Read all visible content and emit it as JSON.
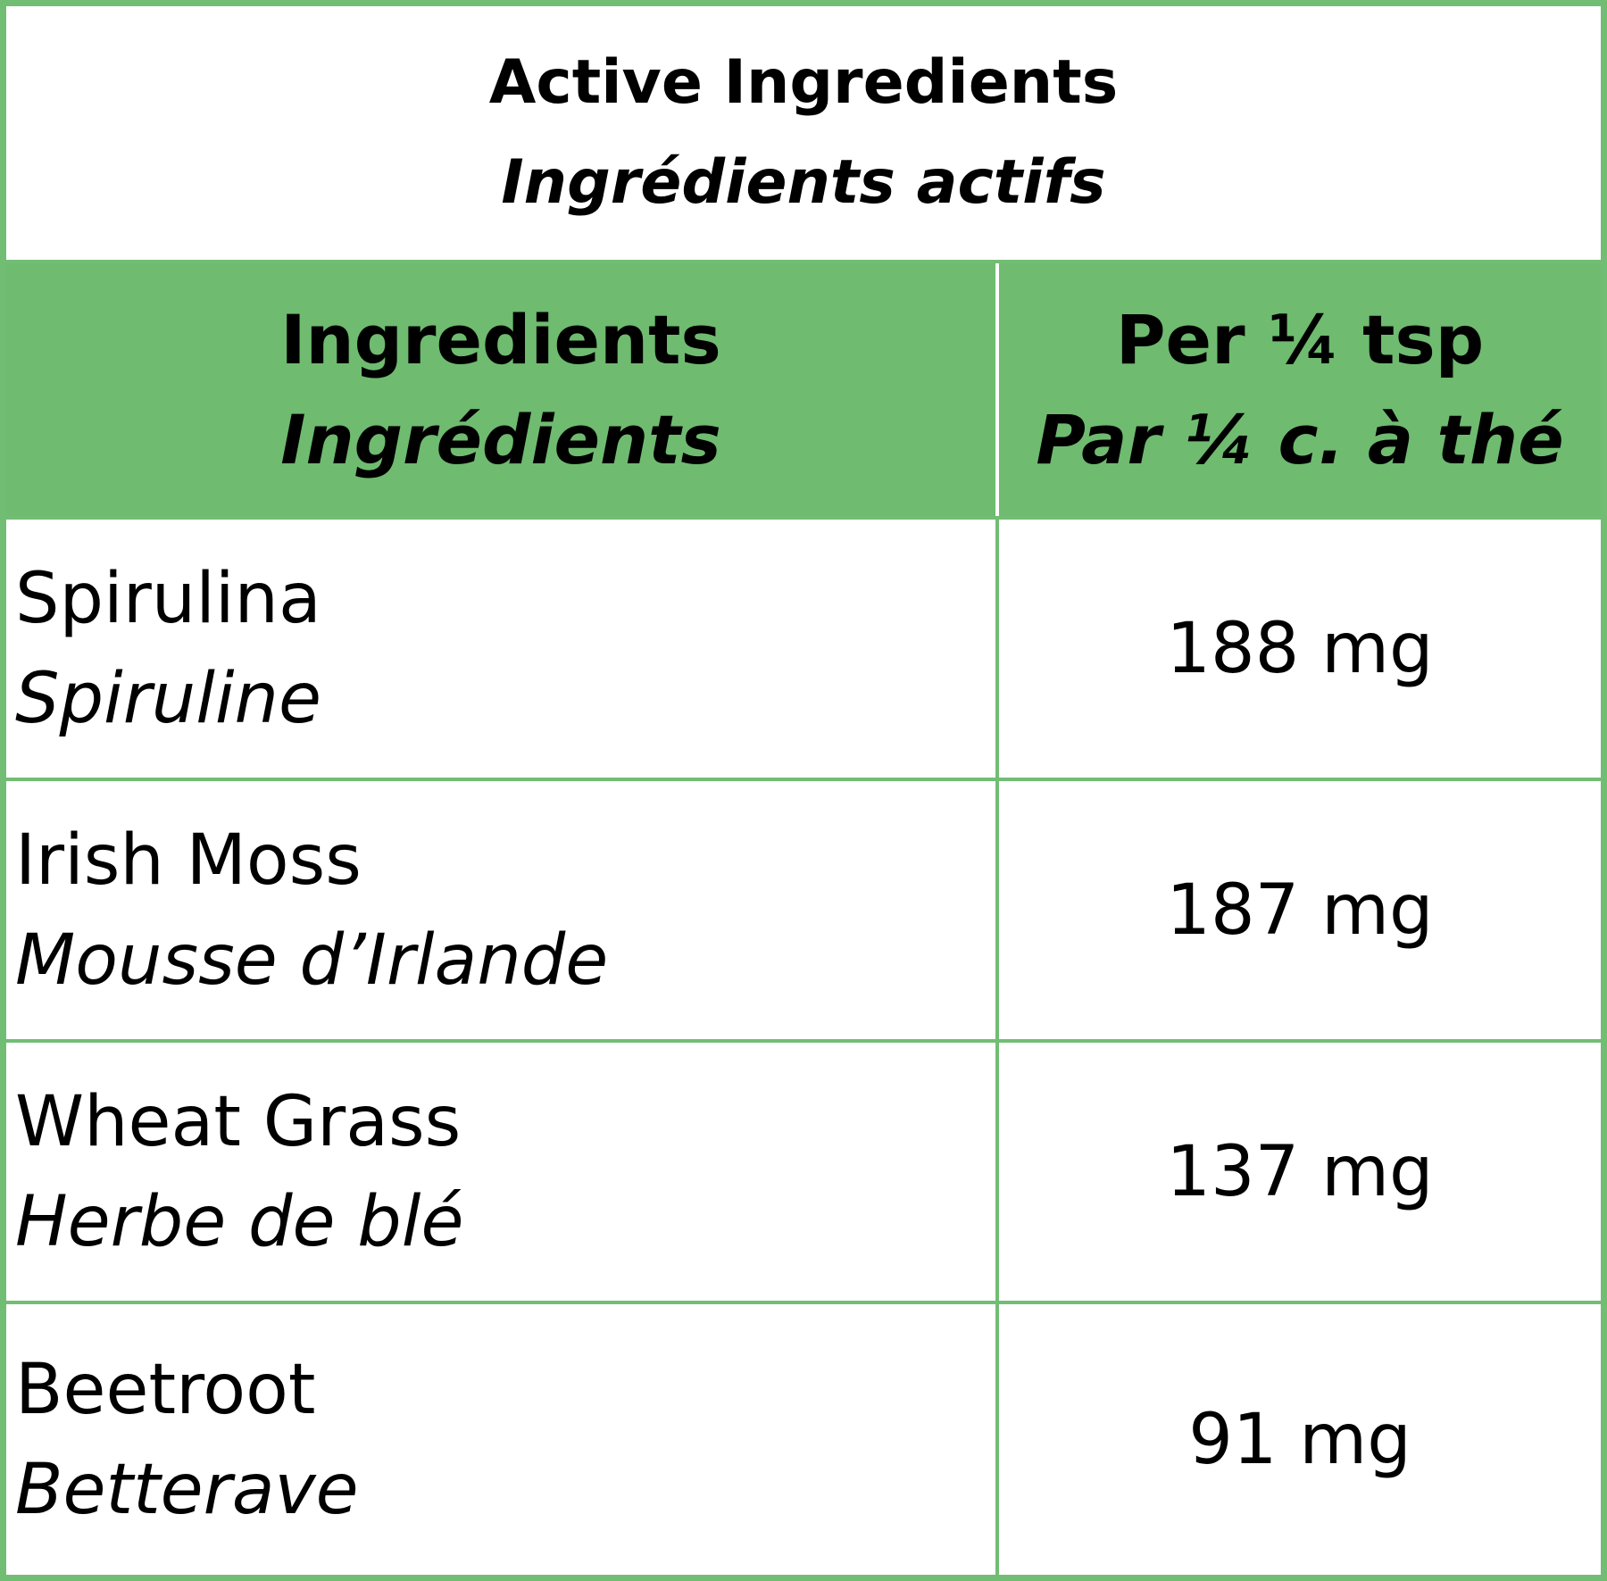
{
  "title": {
    "en": "Active Ingredients",
    "fr": "Ingrédients actifs"
  },
  "table": {
    "header": [
      {
        "en": "Ingredients",
        "fr": "Ingrédients"
      },
      {
        "en": "Per ¼ tsp",
        "fr": "Par ¼ c. à thé"
      }
    ],
    "rows": [
      {
        "en": "Spirulina",
        "fr": "Spiruline",
        "amount": "188 mg"
      },
      {
        "en": "Irish Moss",
        "fr": "Mousse d’Irlande",
        "amount": "187 mg"
      },
      {
        "en": "Wheat Grass",
        "fr": "Herbe de blé",
        "amount": "137 mg"
      },
      {
        "en": "Beetroot",
        "fr": "Betterave",
        "amount": "91 mg"
      }
    ]
  }
}
